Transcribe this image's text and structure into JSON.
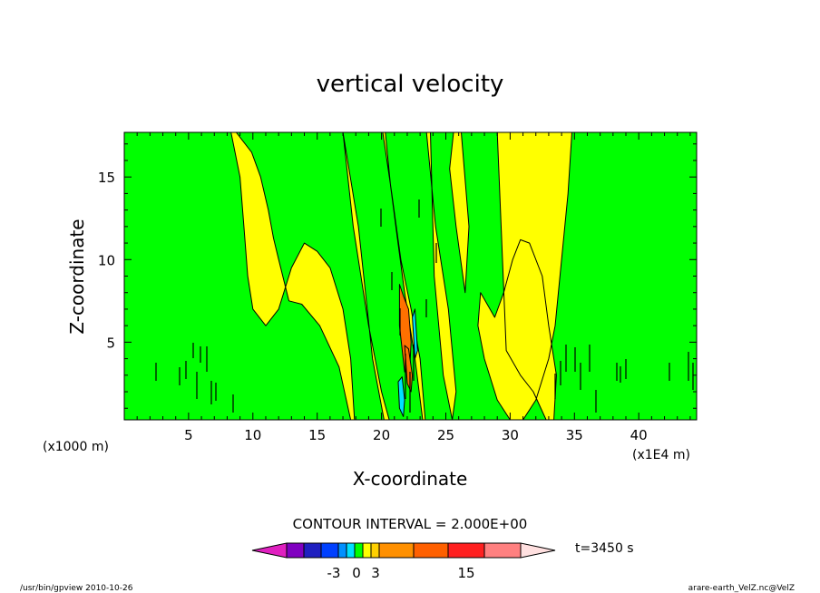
{
  "chart_data": {
    "type": "heatmap",
    "title": "vertical velocity",
    "xlabel": "X-coordinate",
    "ylabel": "Z-coordinate",
    "x_unit_note": "(x1000 m)",
    "x_scale_note": "(x1E4 m)",
    "xlim": [
      0,
      44.5
    ],
    "ylim": [
      0.3,
      17.7
    ],
    "x_ticks": [
      5,
      10,
      15,
      20,
      25,
      30,
      35,
      40
    ],
    "y_ticks": [
      5,
      10,
      15
    ],
    "contour_interval_label": "CONTOUR INTERVAL = 2.000E+00",
    "time_label": "t=3450 s",
    "colorbar_tick_labels": [
      "-3",
      "0",
      "3",
      "15"
    ],
    "colorbar_colors": [
      "#e020c0",
      "#8000c0",
      "#2020c0",
      "#0040ff",
      "#0090ff",
      "#00e0ff",
      "#00ff00",
      "#ffff00",
      "#ffd000",
      "#ff9000",
      "#ff6000",
      "#ff2020",
      "#ff8080",
      "#ffc0c8",
      "#ffe0e0"
    ],
    "fields": {
      "background": "#00ff00",
      "positive": "#ffff00",
      "strong_positive": "#ff7000",
      "negative": "#00e0ff"
    },
    "regions": [
      {
        "level": "positive",
        "x": [
          8.3,
          9.0,
          9.3,
          9.6,
          10.0,
          11.0,
          12.0,
          13.0,
          14.0,
          15.0,
          16.0,
          17.0,
          17.6,
          17.9,
          17.6,
          16.7,
          15.2,
          13.8,
          12.8,
          12.0,
          11.6,
          11.2,
          10.6,
          9.9,
          8.7
        ],
        "y": [
          17.7,
          15.0,
          12.0,
          9.0,
          7.0,
          6.0,
          7.0,
          9.5,
          11.0,
          10.5,
          9.5,
          7.0,
          4.0,
          0.3,
          0.3,
          3.5,
          6.0,
          7.3,
          7.5,
          10.0,
          11.3,
          13.0,
          15.0,
          16.5,
          17.7
        ]
      },
      {
        "level": "positive",
        "x": [
          34.8,
          34.5,
          34.0,
          33.5,
          33.0,
          32.0,
          31.0,
          30.0,
          29.0,
          28.0,
          27.5,
          27.7,
          28.8,
          29.5,
          30.2,
          30.8,
          31.5,
          32.5,
          33.0,
          33.6,
          33.4,
          32.8,
          31.8,
          30.8,
          29.7,
          29.0
        ],
        "y": [
          17.7,
          14.0,
          10.0,
          6.0,
          4.0,
          1.5,
          0.3,
          0.3,
          1.5,
          4.0,
          6.0,
          8.0,
          6.5,
          8.0,
          10.0,
          11.2,
          11.0,
          9.0,
          6.0,
          3.0,
          0.3,
          0.3,
          2.0,
          3.0,
          4.5,
          17.7
        ]
      },
      {
        "level": "positive",
        "x": [
          20.1,
          20.8,
          21.5,
          22.3,
          23.0,
          23.4,
          23.2,
          22.6,
          21.8,
          21.2,
          20.7,
          20.3
        ],
        "y": [
          17.7,
          14.0,
          10.0,
          7.0,
          4.0,
          0.3,
          0.3,
          4.0,
          8.0,
          11.5,
          14.5,
          17.7
        ]
      },
      {
        "level": "positive",
        "x": [
          23.5,
          24.2,
          25.2,
          25.8,
          25.5,
          24.8,
          24.1,
          23.8
        ],
        "y": [
          17.7,
          12.0,
          7.0,
          2.0,
          0.3,
          3.0,
          9.0,
          17.7
        ]
      },
      {
        "level": "positive",
        "x": [
          17.0,
          17.8,
          19.0,
          20.0,
          20.6,
          20.2,
          19.3,
          18.2
        ],
        "y": [
          17.7,
          12.0,
          6.0,
          2.0,
          0.3,
          0.3,
          4.0,
          12.0
        ]
      },
      {
        "level": "positive",
        "x": [
          26.2,
          26.8,
          26.5,
          25.8,
          25.3,
          25.6
        ],
        "y": [
          17.7,
          12.0,
          8.0,
          12.0,
          15.5,
          17.7
        ]
      },
      {
        "level": "strong_positive",
        "x": [
          21.4,
          21.7,
          22.1,
          22.3,
          22.2,
          21.8,
          21.4
        ],
        "y": [
          8.5,
          7.8,
          7.0,
          5.0,
          3.5,
          3.2,
          6.0
        ]
      },
      {
        "level": "strong_positive",
        "x": [
          21.8,
          22.1,
          22.4,
          22.3,
          22.0
        ],
        "y": [
          4.8,
          4.6,
          3.0,
          2.0,
          2.5
        ]
      },
      {
        "level": "negative",
        "x": [
          21.3,
          21.6,
          21.8,
          21.7,
          21.4
        ],
        "y": [
          2.6,
          2.9,
          1.5,
          0.5,
          1.0
        ]
      },
      {
        "level": "negative",
        "x": [
          22.4,
          22.6,
          22.8,
          22.6
        ],
        "y": [
          6.5,
          7.0,
          4.5,
          4.0
        ]
      }
    ]
  },
  "footer": {
    "left": "/usr/bin/gpview  2010-10-26",
    "right": "arare-earth_VelZ.nc@VelZ"
  }
}
